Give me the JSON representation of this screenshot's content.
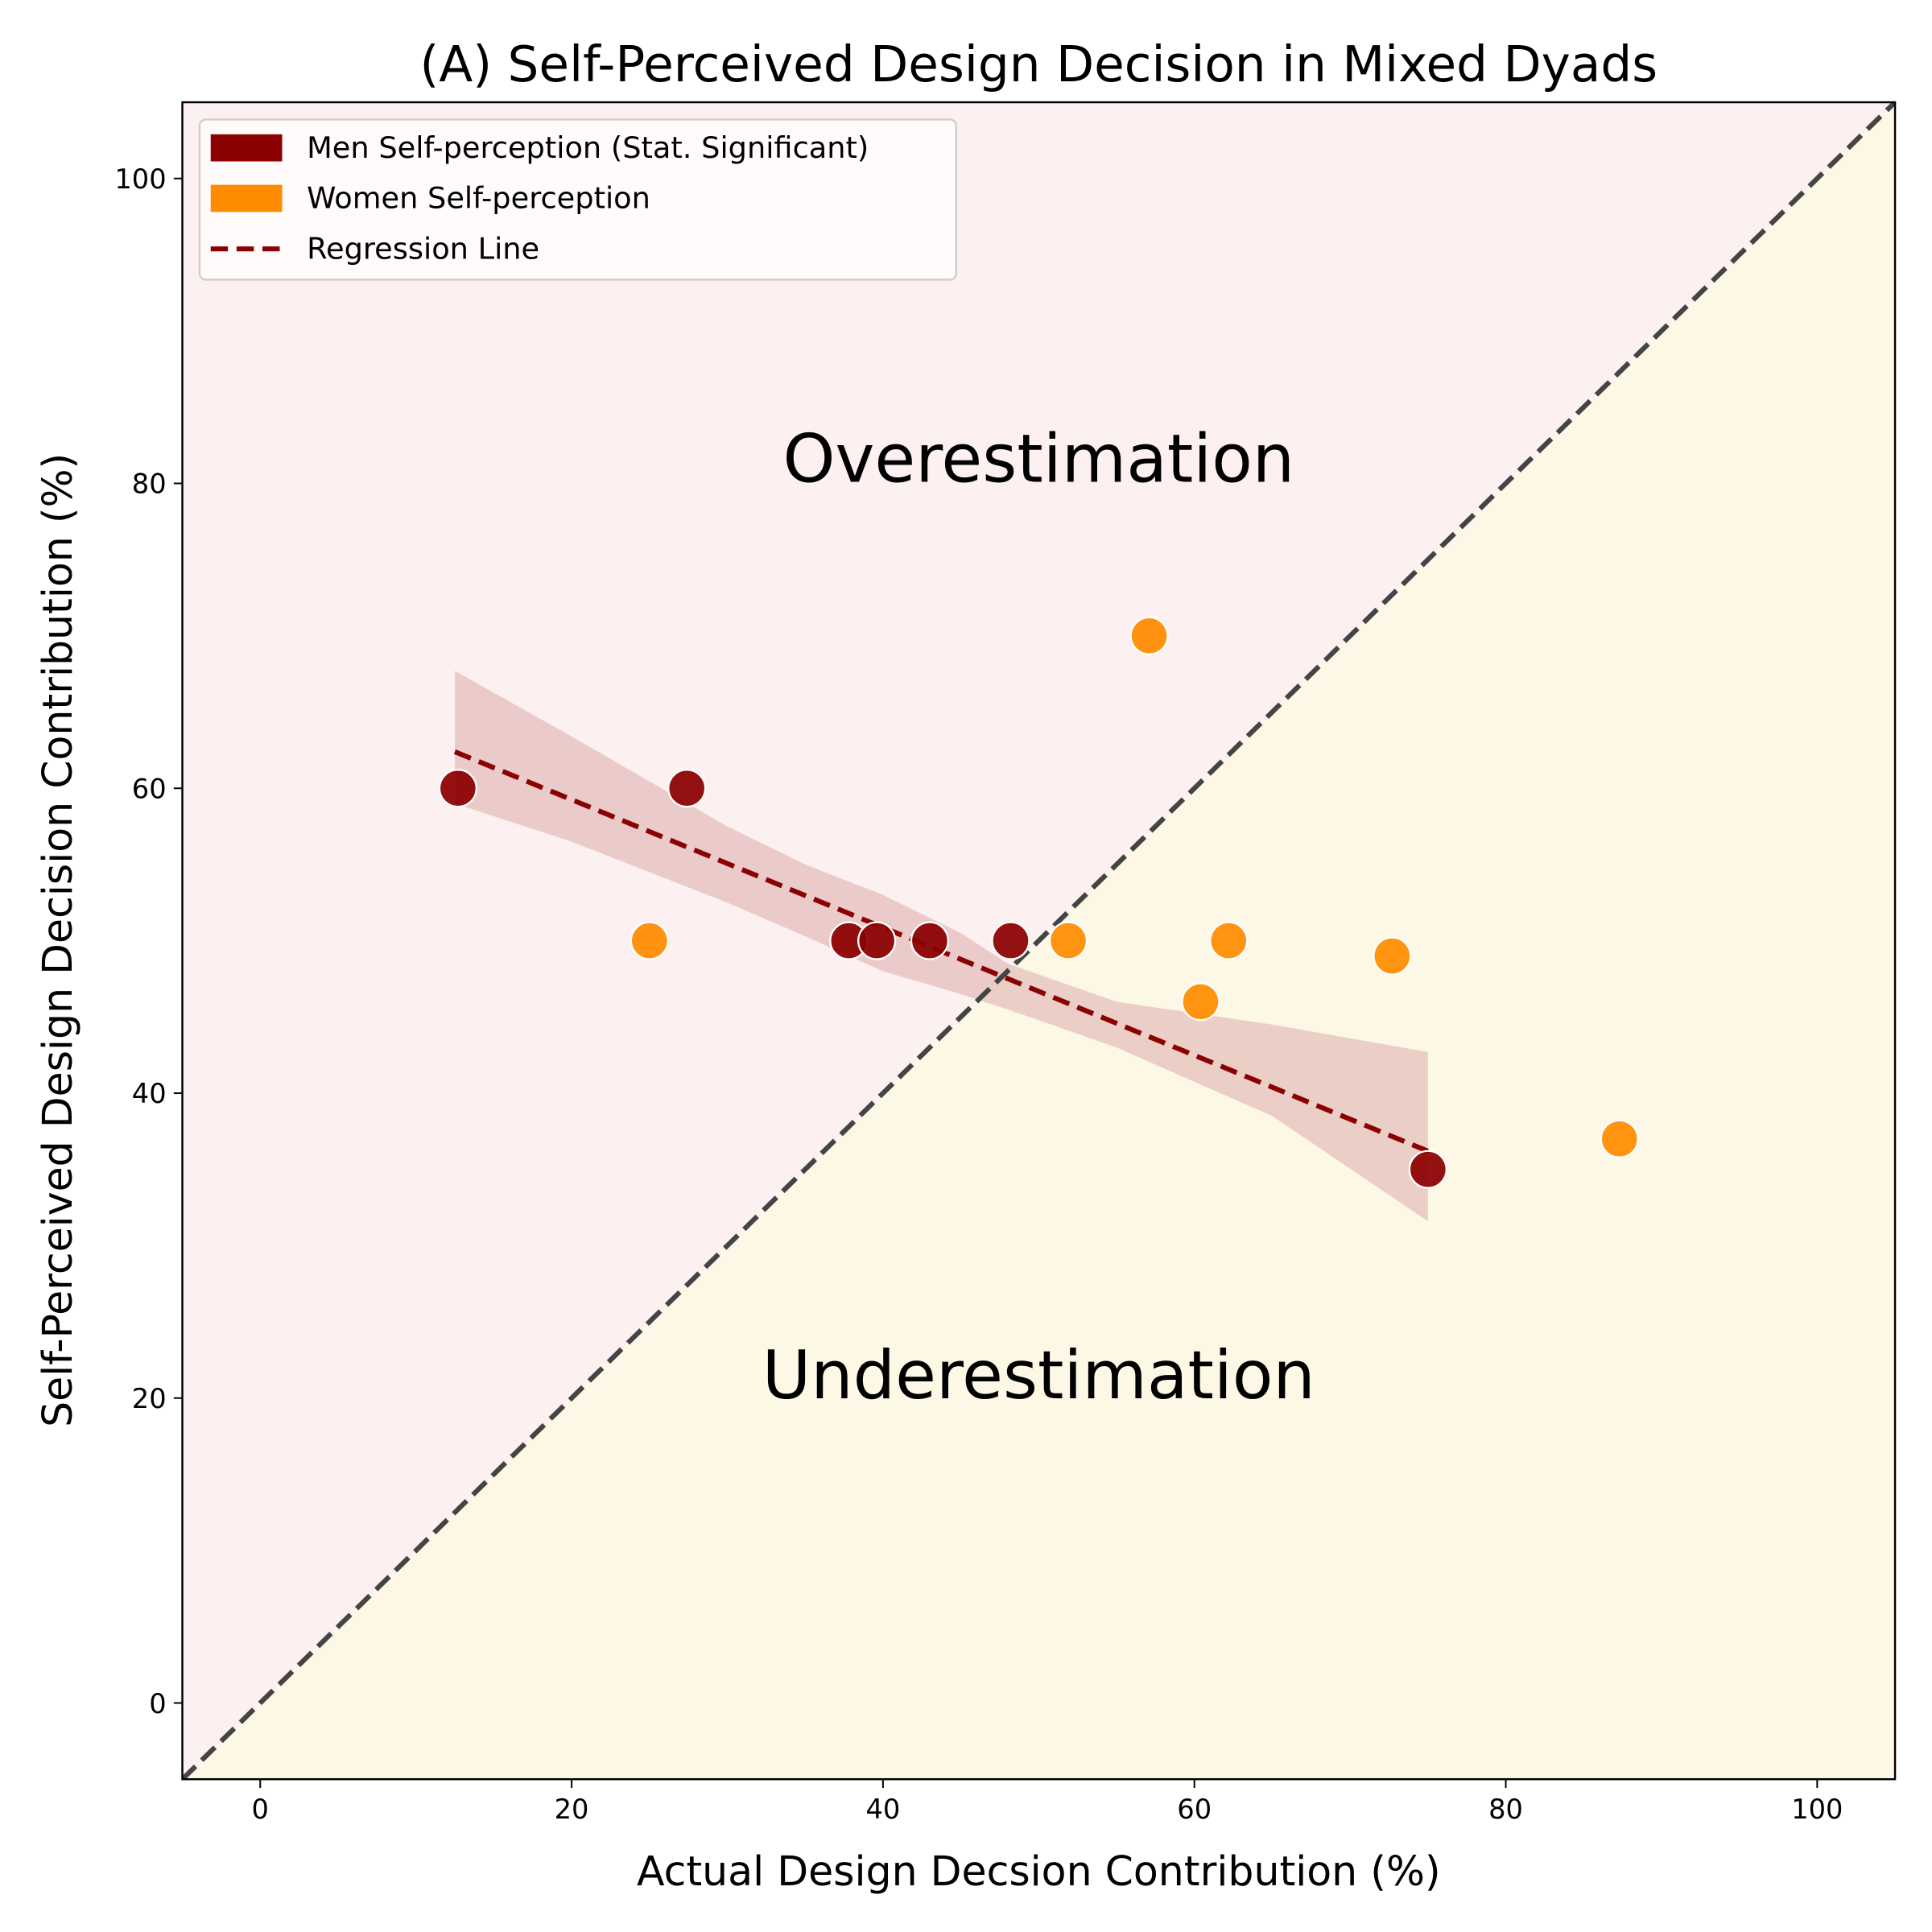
{
  "chart_data": {
    "type": "scatter",
    "title": "(A) Self-Perceived Design Decision in Mixed Dyads",
    "xlabel": "Actual Design Decsion Contribution (%)",
    "ylabel": "Self-Perceived Design Decision Contribution (%)",
    "xlim": [
      -5,
      105
    ],
    "ylim": [
      -5,
      105
    ],
    "xticks": [
      0,
      20,
      40,
      60,
      80,
      100
    ],
    "yticks": [
      0,
      20,
      40,
      60,
      80,
      100
    ],
    "grid": false,
    "legend_position": "top-left",
    "annotations": {
      "over": "Overestimation",
      "under": "Underestimation"
    },
    "colors": {
      "men": "#8b0000",
      "women": "#ff8c00",
      "over_region": "#fcf0f0",
      "under_region": "#fdf8e6",
      "band": "#d9a4a4",
      "diagonal": "#444444"
    },
    "series": [
      {
        "name": "Men Self-perception (Stat. Significant)",
        "points": [
          [
            12.7,
            60
          ],
          [
            27.4,
            60
          ],
          [
            37.8,
            50
          ],
          [
            39.6,
            50
          ],
          [
            43,
            50
          ],
          [
            48.2,
            50
          ],
          [
            75,
            35
          ]
        ]
      },
      {
        "name": "Women Self-perception",
        "points": [
          [
            25,
            50
          ],
          [
            57.1,
            70
          ],
          [
            51.9,
            50
          ],
          [
            62.2,
            50
          ],
          [
            60.4,
            46
          ],
          [
            72.7,
            49
          ],
          [
            87.3,
            37
          ]
        ]
      }
    ],
    "regression": {
      "name": "Regression Line",
      "x": [
        12.5,
        75
      ],
      "y": [
        62.4,
        36.2
      ]
    },
    "confidence_band": {
      "x": [
        12.5,
        20,
        30,
        35,
        40,
        45,
        48,
        55,
        65,
        75
      ],
      "upper": [
        67.7,
        63.4,
        57.5,
        55,
        53,
        50.5,
        48.5,
        46,
        44.5,
        42.7
      ],
      "lower": [
        59,
        56.5,
        52.5,
        50.3,
        48,
        46.5,
        45.5,
        43,
        38.5,
        31.6
      ]
    },
    "diagonal": {
      "x": [
        -5,
        105
      ],
      "y": [
        -5,
        105
      ]
    }
  }
}
